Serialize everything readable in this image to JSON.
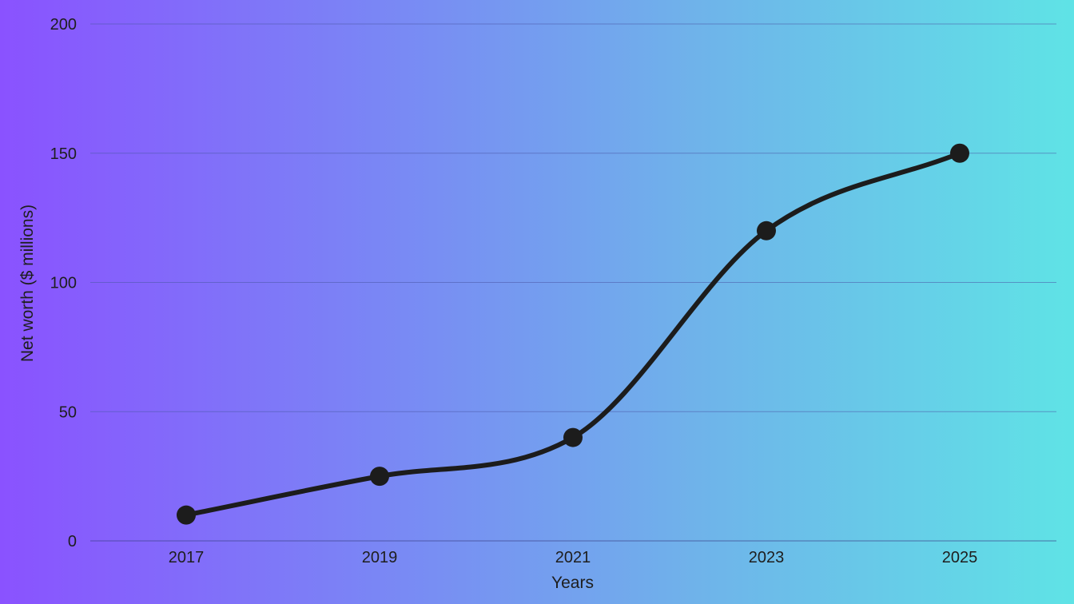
{
  "chart_data": {
    "type": "line",
    "title": "",
    "xlabel": "Years",
    "ylabel": "Net worth ($ millions)",
    "x": [
      "2017",
      "2019",
      "2021",
      "2023",
      "2025"
    ],
    "series": [
      {
        "values": [
          10,
          25,
          40,
          120,
          150
        ]
      }
    ],
    "ylim": [
      0,
      200
    ],
    "yticks": [
      0,
      50,
      100,
      150,
      200
    ],
    "grid": "horizontal",
    "smooth": true,
    "line_color": "#1c1c1c",
    "background_gradient": [
      "#8a52ff",
      "#5fe3e6"
    ]
  }
}
